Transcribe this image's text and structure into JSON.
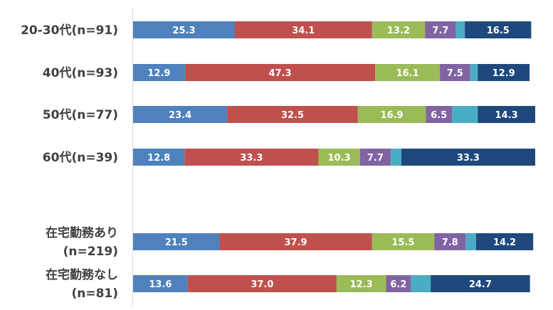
{
  "chart_data": {
    "type": "bar",
    "orientation": "horizontal",
    "stacked": "100%",
    "categories": [
      [
        "20-30代(n=91)"
      ],
      [
        "40代(n=93)"
      ],
      [
        "50代(n=77)"
      ],
      [
        "60代(n=39)"
      ],
      [
        "在宅勤務あり",
        "(n=219)"
      ],
      [
        "在宅勤務なし",
        "(n=81)"
      ]
    ],
    "series": [
      {
        "values": [
          25.3,
          12.9,
          23.4,
          12.8,
          21.5,
          13.6
        ],
        "labels": [
          "25.3",
          "12.9",
          "23.4",
          "12.8",
          "21.5",
          "13.6"
        ],
        "color": "#4f81bd"
      },
      {
        "values": [
          34.1,
          47.3,
          32.5,
          33.3,
          37.9,
          37.0
        ],
        "labels": [
          "34.1",
          "47.3",
          "32.5",
          "33.3",
          "37.9",
          "37.0"
        ],
        "color": "#c0504d"
      },
      {
        "values": [
          13.2,
          16.1,
          16.9,
          10.3,
          15.5,
          12.3
        ],
        "labels": [
          "13.2",
          "16.1",
          "16.9",
          "10.3",
          "15.5",
          "12.3"
        ],
        "color": "#9bbb59"
      },
      {
        "values": [
          7.7,
          7.5,
          6.5,
          7.7,
          7.8,
          6.2
        ],
        "labels": [
          "7.7",
          "7.5",
          "6.5",
          "7.7",
          "7.8",
          "6.2"
        ],
        "color": "#8064a2"
      },
      {
        "values": [
          2.2,
          1.9,
          6.4,
          2.6,
          2.6,
          4.9
        ],
        "labels": [
          "",
          "",
          "",
          "",
          "",
          ""
        ],
        "color": "#4bacc6"
      },
      {
        "values": [
          16.5,
          12.9,
          14.3,
          33.3,
          14.2,
          24.7
        ],
        "labels": [
          "16.5",
          "12.9",
          "14.3",
          "33.3",
          "14.2",
          "24.7"
        ],
        "color": "#1f497d"
      }
    ],
    "xlim": [
      0,
      100
    ],
    "grid": false,
    "legend": "none"
  }
}
